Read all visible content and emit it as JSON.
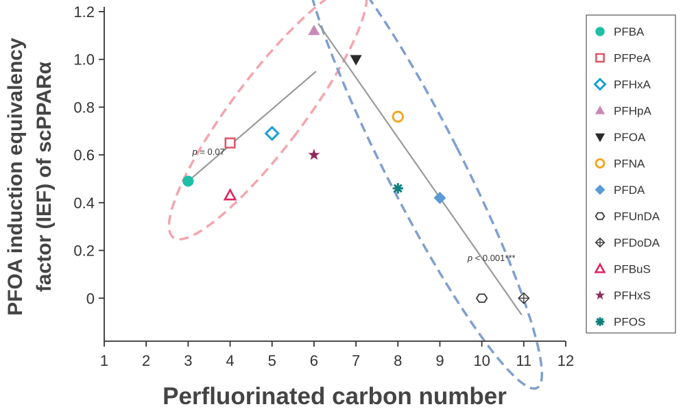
{
  "chart_data": {
    "type": "scatter",
    "xlabel": "Perfluorinated carbon number",
    "ylabel_line1": "PFOA induction equivalency",
    "ylabel_line2": "factor (IEF) of scPPARα",
    "xlim": [
      1,
      12
    ],
    "ylim": [
      -0.18,
      1.22
    ],
    "xticks": [
      1,
      2,
      3,
      4,
      5,
      6,
      7,
      8,
      9,
      10,
      11,
      12
    ],
    "yticks": [
      0,
      0.2,
      0.4,
      0.6,
      0.8,
      1.0,
      1.2
    ],
    "ytick_labels": [
      "0",
      "0.2",
      "0.4",
      "0.6",
      "0.8",
      "1.0",
      "1.2"
    ],
    "grid": false,
    "legend_position": "right",
    "series": [
      {
        "name": "PFBA",
        "x": 3,
        "y": 0.49,
        "marker": "circle-filled",
        "color": "#1fbfa6"
      },
      {
        "name": "PFPeA",
        "x": 4,
        "y": 0.65,
        "marker": "square-open",
        "color": "#e05a6a"
      },
      {
        "name": "PFHxA",
        "x": 5,
        "y": 0.69,
        "marker": "diamond-open",
        "color": "#1a9fd4"
      },
      {
        "name": "PFHpA",
        "x": 6,
        "y": 1.12,
        "marker": "triangle-up-filled",
        "color": "#c98ab8"
      },
      {
        "name": "PFOA",
        "x": 7,
        "y": 1.0,
        "marker": "triangle-down-filled",
        "color": "#2b2b2b"
      },
      {
        "name": "PFNA",
        "x": 8,
        "y": 0.76,
        "marker": "circle-open",
        "color": "#f5a623"
      },
      {
        "name": "PFDA",
        "x": 9,
        "y": 0.42,
        "marker": "diamond-filled",
        "color": "#5b9bd5"
      },
      {
        "name": "PFUnDA",
        "x": 10,
        "y": 0.0,
        "marker": "hexagon-open",
        "color": "#333333"
      },
      {
        "name": "PFDoDA",
        "x": 11,
        "y": 0.0,
        "marker": "diamond-cross",
        "color": "#333333"
      },
      {
        "name": "PFBuS",
        "x": 4,
        "y": 0.43,
        "marker": "triangle-up-open",
        "color": "#e0245e"
      },
      {
        "name": "PFHxS",
        "x": 6,
        "y": 0.6,
        "marker": "star",
        "color": "#8e2a5c"
      },
      {
        "name": "PFOS",
        "x": 8,
        "y": 0.46,
        "marker": "asterisk",
        "color": "#0f7f7f"
      }
    ],
    "regression_lines": [
      {
        "x1": 3,
        "y1": 0.49,
        "x2": 6.05,
        "y2": 0.95,
        "color": "#999999"
      },
      {
        "x1": 6.1,
        "y1": 1.15,
        "x2": 10.95,
        "y2": -0.07,
        "color": "#999999"
      }
    ],
    "annotations": [
      {
        "text_italic": "p",
        "text": " = 0.07",
        "x": 3.1,
        "y": 0.6
      },
      {
        "text_italic": "p",
        "text": " < 0.001***",
        "x": 10.8,
        "y": 0.155
      }
    ],
    "ellipses": [
      {
        "cx": 4.9,
        "cy": 0.78,
        "rx": 0.85,
        "ry": 2.35,
        "angle": 37,
        "color": "#f4a5ad"
      },
      {
        "cx": 8.6,
        "cy": 0.56,
        "rx": 0.9,
        "ry": 3.75,
        "angle": -27,
        "color": "#7f9fd1"
      }
    ]
  }
}
